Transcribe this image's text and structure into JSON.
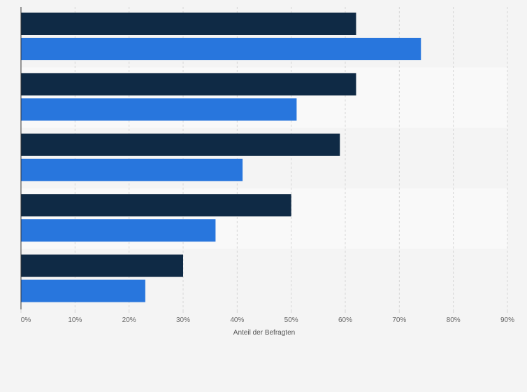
{
  "chart_data": {
    "type": "bar",
    "orientation": "horizontal",
    "title": "",
    "xlabel": "Anteil der Befragten",
    "ylabel": "",
    "xlim": [
      0,
      90
    ],
    "x_ticks": [
      "0%",
      "10%",
      "20%",
      "30%",
      "40%",
      "50%",
      "60%",
      "70%",
      "80%",
      "90%"
    ],
    "categories": [
      "",
      "",
      "",
      "",
      ""
    ],
    "series": [
      {
        "name": "",
        "color": "#0f2a45",
        "values": [
          62,
          62,
          59,
          50,
          30
        ]
      },
      {
        "name": "",
        "color": "#2876dd",
        "values": [
          74,
          51,
          41,
          36,
          23
        ]
      }
    ],
    "grid": true,
    "legend": "none",
    "unit": "%"
  },
  "colors": {
    "background": "#f4f4f4",
    "band_alt": "#f9f9f9",
    "grid": "#d6d6d6",
    "axis": "#333333"
  }
}
